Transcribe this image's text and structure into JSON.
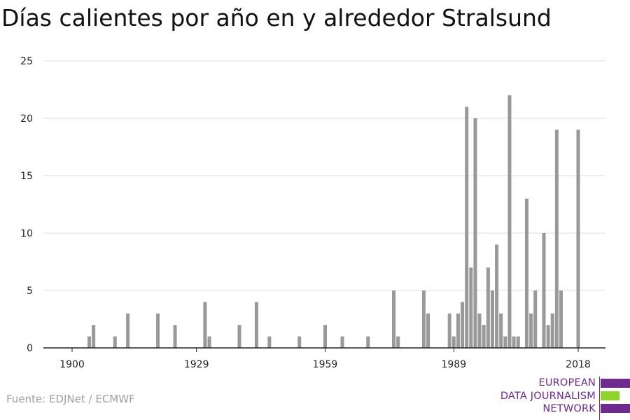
{
  "title": "Días calientes por año en y alrededor Stralsund",
  "source": "Fuente: EDJNet / ECMWF",
  "logo": {
    "lines": [
      "EUROPEAN",
      "DATA JOURNALISM",
      "NETWORK"
    ],
    "colors": {
      "purple": "#6e2a8e",
      "green": "#8fd42d"
    }
  },
  "chart_data": {
    "type": "bar",
    "title": "Días calientes por año en y alrededor Stralsund",
    "xlabel": "",
    "ylabel": "",
    "xlim": [
      1900,
      2018
    ],
    "ylim": [
      0,
      25
    ],
    "xticks": [
      1900,
      1929,
      1959,
      1989,
      2018
    ],
    "yticks": [
      0,
      5,
      10,
      15,
      20,
      25
    ],
    "grid": true,
    "bar_color": "#999999",
    "x": [
      1904,
      1905,
      1910,
      1913,
      1920,
      1924,
      1931,
      1932,
      1939,
      1943,
      1946,
      1953,
      1959,
      1963,
      1969,
      1975,
      1976,
      1982,
      1983,
      1988,
      1989,
      1990,
      1991,
      1992,
      1993,
      1994,
      1995,
      1996,
      1997,
      1998,
      1999,
      2000,
      2001,
      2002,
      2003,
      2004,
      2006,
      2007,
      2008,
      2010,
      2011,
      2012,
      2013,
      2014,
      2018
    ],
    "values": [
      1,
      2,
      1,
      3,
      3,
      2,
      4,
      1,
      2,
      4,
      1,
      1,
      2,
      1,
      1,
      5,
      1,
      5,
      3,
      3,
      1,
      3,
      4,
      21,
      7,
      20,
      3,
      2,
      7,
      5,
      9,
      3,
      1,
      22,
      1,
      1,
      13,
      3,
      5,
      10,
      2,
      3,
      19,
      5,
      19
    ]
  }
}
